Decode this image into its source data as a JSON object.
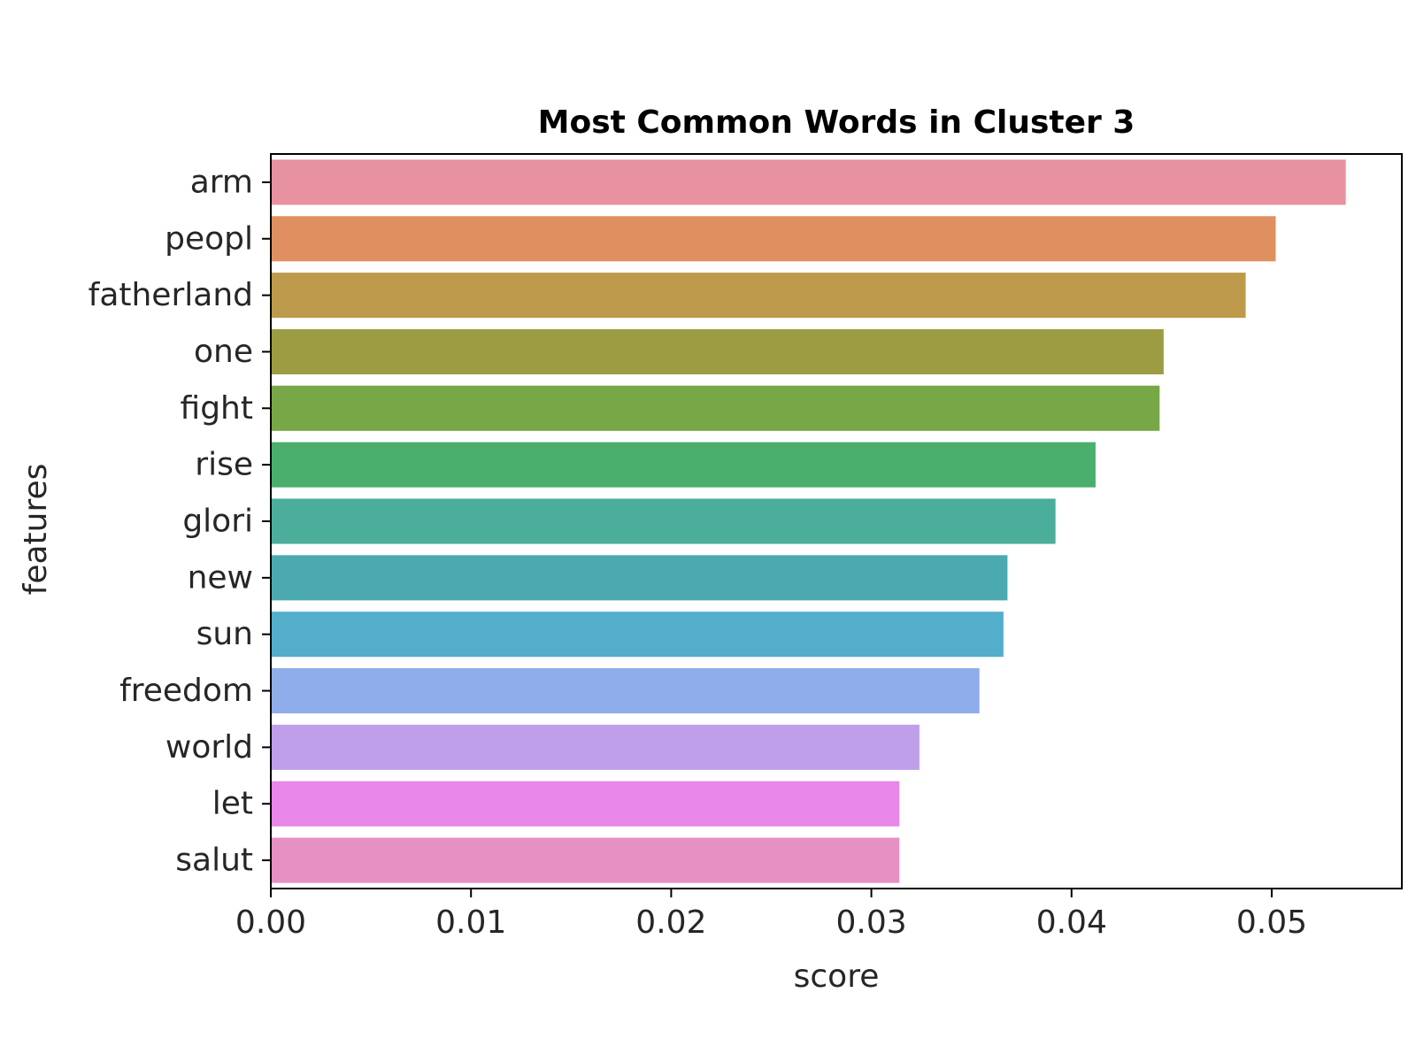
{
  "chart_data": {
    "type": "bar",
    "orientation": "horizontal",
    "title": "Most Common Words in Cluster 3",
    "xlabel": "score",
    "ylabel": "features",
    "xlim": [
      0,
      0.0565
    ],
    "xticks": [
      0.0,
      0.01,
      0.02,
      0.03,
      0.04,
      0.05
    ],
    "xtick_labels": [
      "0.00",
      "0.01",
      "0.02",
      "0.03",
      "0.04",
      "0.05"
    ],
    "grid": false,
    "categories": [
      "arm",
      "peopl",
      "fatherland",
      "one",
      "fight",
      "rise",
      "glori",
      "new",
      "sun",
      "freedom",
      "world",
      "let",
      "salut"
    ],
    "values": [
      0.0537,
      0.0502,
      0.0487,
      0.0446,
      0.0444,
      0.0412,
      0.0392,
      0.0368,
      0.0366,
      0.0354,
      0.0324,
      0.0314,
      0.0314
    ],
    "colors": [
      "#e8929f",
      "#e09060",
      "#bd9a4b",
      "#9c9c43",
      "#77a747",
      "#4aae6d",
      "#4aae9b",
      "#4aaab0",
      "#52aecb",
      "#8fadea",
      "#bf9fea",
      "#e887e8",
      "#e690c3"
    ]
  }
}
